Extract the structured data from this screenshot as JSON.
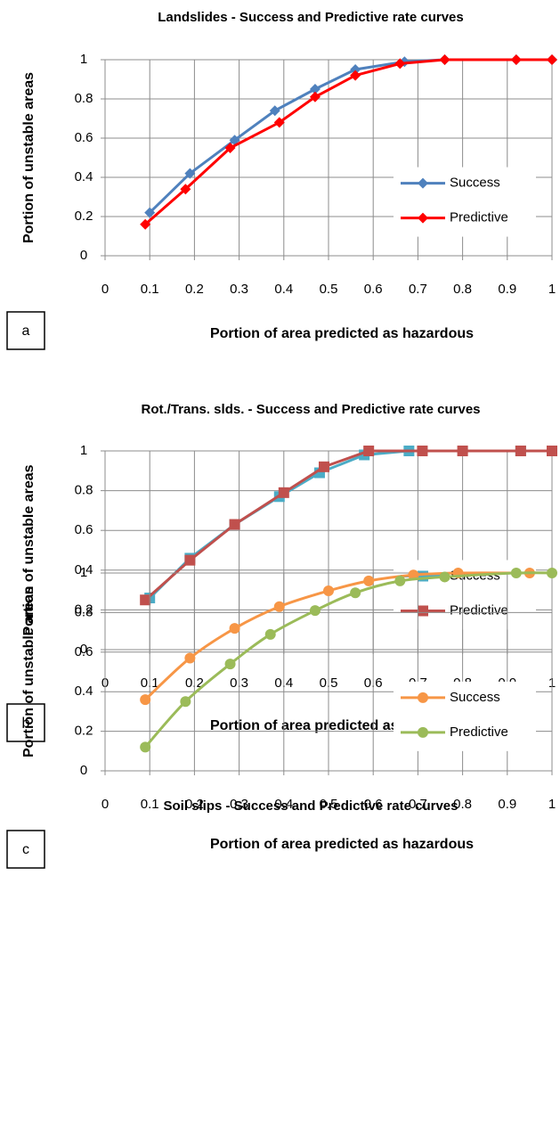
{
  "chart_data": [
    {
      "type": "line",
      "title": "Landslides - Success and Predictive rate curves",
      "panel_label": "a",
      "x_label": "Portion of area predicted as hazardous",
      "y_label": "Portion of unstable areas",
      "xlim": [
        0,
        1
      ],
      "ylim": [
        0,
        1
      ],
      "xticks": [
        0,
        0.1,
        0.2,
        0.3,
        0.4,
        0.5,
        0.6,
        0.7,
        0.8,
        0.9,
        1
      ],
      "yticks": [
        0,
        0.2,
        0.4,
        0.6,
        0.8,
        1
      ],
      "grid": true,
      "legend": "right",
      "smooth": false,
      "series": [
        {
          "name": "Success",
          "color": "#4f81bd",
          "marker": "diamond",
          "x": [
            0.1,
            0.19,
            0.29,
            0.38,
            0.47,
            0.56,
            0.67,
            0.76,
            0.92,
            1
          ],
          "values": [
            0.22,
            0.42,
            0.59,
            0.74,
            0.85,
            0.95,
            0.99,
            1,
            1,
            1
          ]
        },
        {
          "name": "Predictive",
          "color": "#ff0000",
          "marker": "diamond",
          "x": [
            0.09,
            0.18,
            0.28,
            0.39,
            0.47,
            0.56,
            0.66,
            0.76,
            0.92,
            1
          ],
          "values": [
            0.16,
            0.34,
            0.55,
            0.68,
            0.81,
            0.92,
            0.98,
            1,
            1,
            1
          ]
        }
      ]
    },
    {
      "type": "line",
      "title": "Rot./Trans. slds. - Success and Predictive rate curves",
      "panel_label": "b",
      "x_label": "Portion of area predicted as hazardous",
      "y_label": "Portion of unstable areas",
      "xlim": [
        0,
        1
      ],
      "ylim": [
        0,
        1
      ],
      "xticks": [
        0,
        0.1,
        0.2,
        0.3,
        0.4,
        0.5,
        0.6,
        0.7,
        0.8,
        0.9,
        1
      ],
      "yticks": [
        0,
        0.2,
        0.4,
        0.6,
        0.8,
        1
      ],
      "grid": true,
      "legend": "right",
      "smooth": false,
      "series": [
        {
          "name": "Success",
          "color": "#4bacc6",
          "marker": "square",
          "x": [
            0.1,
            0.19,
            0.29,
            0.39,
            0.48,
            0.58,
            0.68,
            0.93
          ],
          "values": [
            0.26,
            0.46,
            0.63,
            0.77,
            0.89,
            0.98,
            1,
            1
          ]
        },
        {
          "name": "Predictive",
          "color": "#c0504d",
          "marker": "square",
          "x": [
            0.09,
            0.19,
            0.29,
            0.4,
            0.49,
            0.59,
            0.71,
            0.8,
            0.93,
            1
          ],
          "values": [
            0.25,
            0.45,
            0.63,
            0.79,
            0.92,
            1,
            1,
            1,
            1,
            1
          ]
        }
      ]
    },
    {
      "type": "line",
      "title": "Soil slips - Success and Predictive rate curves",
      "panel_label": "c",
      "x_label": "Portion of area predicted as hazardous",
      "y_label": "Portion of unstable areas",
      "xlim": [
        0,
        1
      ],
      "ylim": [
        0,
        1
      ],
      "xticks": [
        0,
        0.1,
        0.2,
        0.3,
        0.4,
        0.5,
        0.6,
        0.7,
        0.8,
        0.9,
        1
      ],
      "yticks": [
        0,
        0.2,
        0.4,
        0.6,
        0.8,
        1
      ],
      "grid": true,
      "legend": "right",
      "smooth": true,
      "series": [
        {
          "name": "Success",
          "color": "#f79646",
          "marker": "circle",
          "x": [
            0.09,
            0.19,
            0.29,
            0.39,
            0.5,
            0.59,
            0.69,
            0.79,
            0.95
          ],
          "values": [
            0.36,
            0.57,
            0.72,
            0.83,
            0.91,
            0.96,
            0.99,
            1,
            1
          ]
        },
        {
          "name": "Predictive",
          "color": "#9bbb59",
          "marker": "circle",
          "x": [
            0.09,
            0.18,
            0.28,
            0.37,
            0.47,
            0.56,
            0.66,
            0.76,
            0.92,
            1
          ],
          "values": [
            0.12,
            0.35,
            0.54,
            0.69,
            0.81,
            0.9,
            0.96,
            0.98,
            1,
            1
          ]
        }
      ]
    }
  ]
}
